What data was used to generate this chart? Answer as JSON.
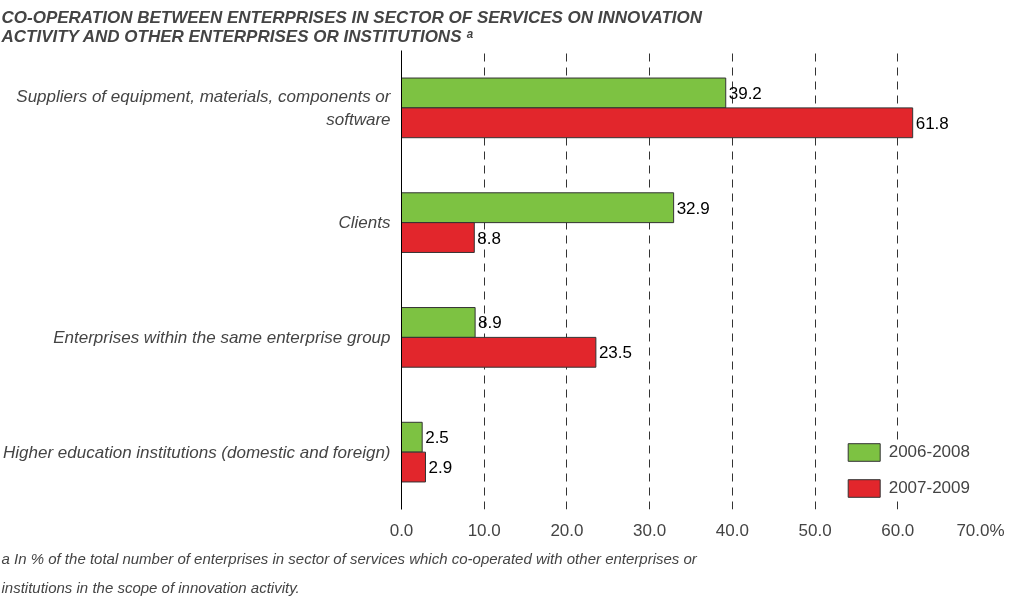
{
  "chart_data": {
    "type": "bar",
    "orientation": "horizontal",
    "title": "CO-OPERATION BETWEEN ENTERPRISES IN SECTOR OF SERVICES ON INNOVATION ACTIVITY AND OTHER ENTERPRISES OR INSTITUTIONS ᵃ",
    "categories": [
      "Suppliers of equipment, materials, components or software",
      "Clients",
      "Enterprises within the same enterprise group",
      "Higher education institutions (domestic and foreign)"
    ],
    "series": [
      {
        "name": "2006-2008",
        "color": "#7dc242",
        "values": [
          39.2,
          32.9,
          8.9,
          2.5
        ]
      },
      {
        "name": "2007-2009",
        "color": "#e2262c",
        "values": [
          61.8,
          8.8,
          23.5,
          2.9
        ]
      }
    ],
    "xlim": [
      0,
      70
    ],
    "xticks": [
      {
        "value": 0,
        "label": "0.0"
      },
      {
        "value": 10,
        "label": "10.0"
      },
      {
        "value": 20,
        "label": "20.0"
      },
      {
        "value": 30,
        "label": "30.0"
      },
      {
        "value": 40,
        "label": "40.0"
      },
      {
        "value": 50,
        "label": "50.0"
      },
      {
        "value": 60,
        "label": "60.0"
      },
      {
        "value": 70,
        "label": "70.0%"
      }
    ],
    "grid": "x",
    "line_style": "dashed",
    "legend": "bottom right",
    "data_labels": true,
    "annotations": [
      "a In % of the total number of enterprises in sector of services which co-operated with other enterprises or institutions in the scope of innovation activity."
    ]
  }
}
